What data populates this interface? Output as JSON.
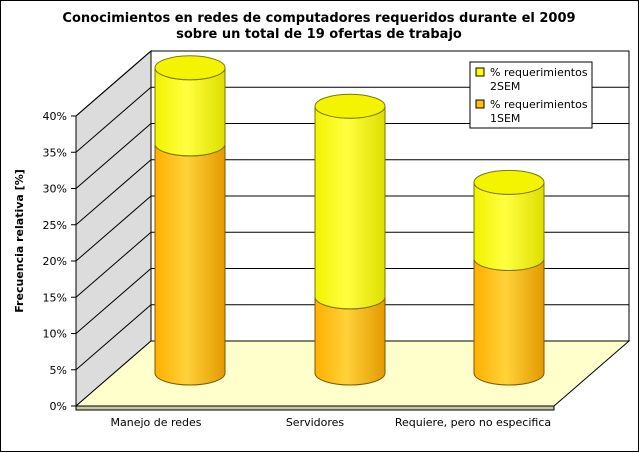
{
  "chart_data": {
    "type": "bar",
    "stacked": true,
    "three_d": true,
    "title_line1": "Conocimientos en redes de computadores requeridos durante el 2009",
    "title_line2": "sobre un total de 19 ofertas de trabajo",
    "ylabel": "Frecuencia relativa [%]",
    "xlabel": "",
    "ylim": [
      0,
      40
    ],
    "yticks": [
      "0%",
      "5%",
      "10%",
      "15%",
      "20%",
      "25%",
      "30%",
      "35%",
      "40%"
    ],
    "categories": [
      "Manejo de redes",
      "Servidores",
      "Requiere, pero no especifica"
    ],
    "series": [
      {
        "name": "% requerimientos 1SEM",
        "legend_lines": [
          "% requerimientos",
          "1SEM"
        ],
        "values": [
          31.6,
          10.5,
          15.8
        ],
        "color": "#ffc000"
      },
      {
        "name": "% requerimientos 2SEM",
        "legend_lines": [
          "% requerimientos",
          "2SEM"
        ],
        "values": [
          10.5,
          26.3,
          10.5
        ],
        "color": "#ffff00"
      }
    ],
    "grid": true,
    "legend_position": "top-right",
    "floor_color": "#ffffcc",
    "wall_color": "#dcdcdc"
  }
}
